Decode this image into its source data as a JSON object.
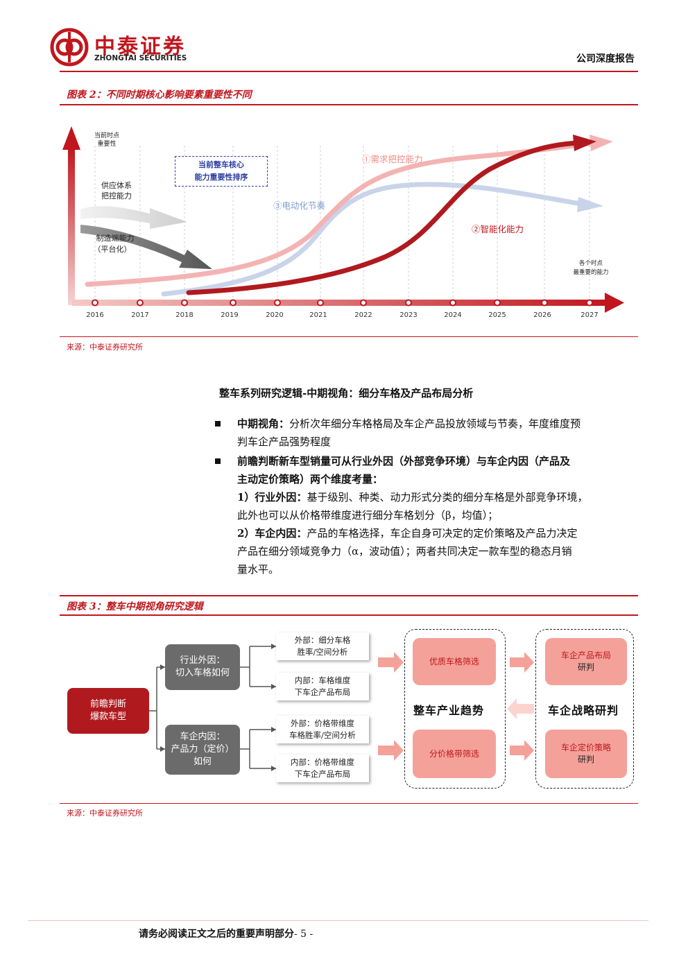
{
  "header": {
    "logo_cn": "中泰证券",
    "logo_en": "ZHONGTAI SECURITIES",
    "report_type": "公司深度报告"
  },
  "figure2": {
    "title": "图表 2：不同时期核心影响要素重要性不同",
    "y_axis_label_line1": "当前时点",
    "y_axis_label_line2": "重要性",
    "callout_line1": "当前整车核心",
    "callout_line2": "能力重要性排序",
    "supply_label_line1": "供应体系",
    "supply_label_line2": "把控能力",
    "mfg_label_line1": "制造端能力",
    "mfg_label_line2": "（平台化）",
    "curve1_label": "①需求把控能力",
    "curve2_label": "②智能化能力",
    "curve3_label": "③电动化节奏",
    "right_note_line1": "各个时点",
    "right_note_line2": "最重要的能力",
    "years": [
      "2016",
      "2017",
      "2018",
      "2019",
      "2020",
      "2021",
      "2022",
      "2023",
      "2024",
      "2025",
      "2026",
      "2027"
    ],
    "source": "来源：中泰证券研究所"
  },
  "section": {
    "heading": "整车系列研究逻辑-中期视角：细分车格及产品布局分析",
    "bullet1_bold": "中期视角：",
    "bullet1_line1": "分析次年细分车格格局及车企产品投放领域与节奏，年度维度预",
    "bullet1_line2": "判车企产品强势程度",
    "bullet2_line1": "前瞻判断新车型销量可从行业外因（外部竞争环境）与车企内因（产品及",
    "bullet2_line2": "主动定价策略）两个维度考量：",
    "item1_bold": "1）行业外因：",
    "item1_line1": "基于级别、种类、动力形式分类的细分车格是外部竞争环境，",
    "item1_line2": "此外也可以从价格带维度进行细分车格划分（β，均值）；",
    "item2_bold": "2）车企内因：",
    "item2_line1": "产品的车格选择，车企自身可决定的定价策略及产品力决定",
    "item2_line2": "产品在细分领域竞争力（α，波动值）；两者共同决定一款车型的稳态月销",
    "item2_line3": "量水平。"
  },
  "figure3": {
    "title": "图表 3：整车中期视角研究逻辑",
    "root_line1": "前瞻判断",
    "root_line2": "爆款车型",
    "industry_line1": "行业外因：",
    "industry_line2": "切入车格如何",
    "company_line1": "车企内因：",
    "company_line2": "产品力（定价）",
    "company_line3": "如何",
    "ext1_line1": "外部：细分车格",
    "ext1_line2": "胜率/空间分析",
    "int1_line1": "内部：车格维度",
    "int1_line2": "下车企产品布局",
    "ext2_line1": "外部：价格带维度",
    "ext2_line2": "车格胜率/空间分析",
    "int2_line1": "内部：价格带维度",
    "int2_line2": "下车企产品布局",
    "filter1": "优质车格筛选",
    "filter2": "分价格带筛选",
    "trend_label": "整车产业趋势",
    "strategy_label": "车企战略研判",
    "strat1_line1": "车企产品布局",
    "strat1_line2": "研判",
    "strat2_line1": "车企定价策略",
    "strat2_line2": "研判",
    "source": "来源：中泰证券研究所"
  },
  "footer": {
    "disclaimer": "请务必阅读正文之后的重要声明部分",
    "page": "- 5 -"
  },
  "colors": {
    "brand_red": "#c0161d",
    "pink": "#f4a199",
    "light_blue": "#b9c9e4"
  }
}
